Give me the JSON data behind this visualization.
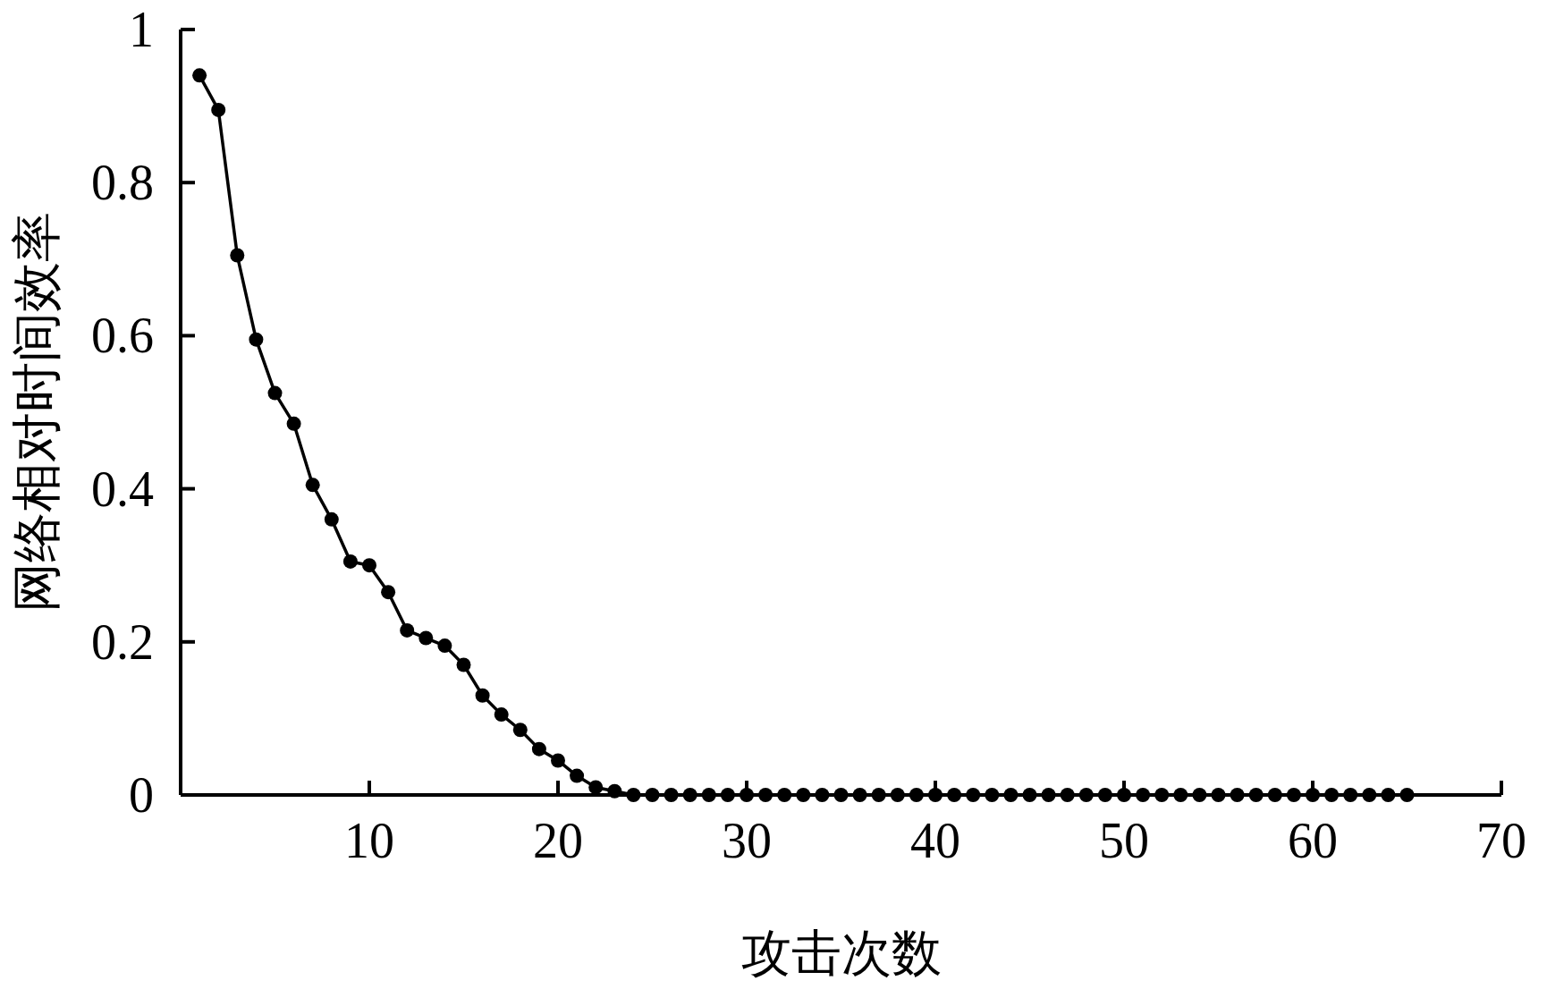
{
  "chart_data": {
    "type": "line",
    "xlabel": "攻击次数",
    "ylabel": "网络相对时间效率",
    "xlim": [
      0,
      70
    ],
    "xticks": [
      {
        "value": 0,
        "label": null
      },
      10,
      20,
      30,
      40,
      50,
      60,
      70
    ],
    "ylim": [
      0,
      1
    ],
    "yticks": [
      0,
      0.2,
      0.4,
      0.6,
      0.8,
      1
    ],
    "grid": false,
    "marker": "circle",
    "line_style": "solid",
    "x": [
      1,
      2,
      3,
      4,
      5,
      6,
      7,
      8,
      9,
      10,
      11,
      12,
      13,
      14,
      15,
      16,
      17,
      18,
      19,
      20,
      21,
      22,
      23,
      24,
      25,
      26,
      27,
      28,
      29,
      30,
      31,
      32,
      33,
      34,
      35,
      36,
      37,
      38,
      39,
      40,
      41,
      42,
      43,
      44,
      45,
      46,
      47,
      48,
      49,
      50,
      51,
      52,
      53,
      54,
      55,
      56,
      57,
      58,
      59,
      60,
      61,
      62,
      63,
      64,
      65
    ],
    "series": [
      {
        "color": "#000000",
        "values": [
          0.94,
          0.895,
          0.705,
          0.595,
          0.525,
          0.485,
          0.405,
          0.36,
          0.305,
          0.3,
          0.265,
          0.215,
          0.205,
          0.195,
          0.17,
          0.13,
          0.105,
          0.085,
          0.06,
          0.045,
          0.025,
          0.01,
          0.005,
          0,
          0,
          0,
          0,
          0,
          0,
          0,
          0,
          0,
          0,
          0,
          0,
          0,
          0,
          0,
          0,
          0,
          0,
          0,
          0,
          0,
          0,
          0,
          0,
          0,
          0,
          0,
          0,
          0,
          0,
          0,
          0,
          0,
          0,
          0,
          0,
          0,
          0,
          0,
          0,
          0,
          0
        ]
      }
    ]
  }
}
